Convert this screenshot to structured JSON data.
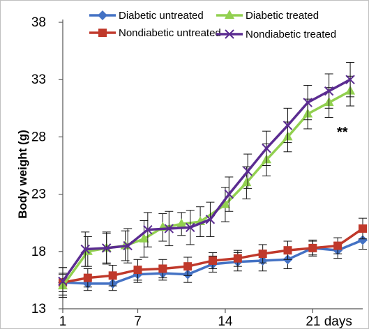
{
  "chart_data": {
    "type": "line",
    "title": "",
    "xlabel": "",
    "ylabel": "Body weight (g)",
    "xlim": [
      1,
      25
    ],
    "ylim": [
      13,
      38
    ],
    "yticks": [
      13,
      18,
      23,
      28,
      33,
      38
    ],
    "xticks": [
      {
        "value": 1,
        "label": "1"
      },
      {
        "value": 7,
        "label": "7"
      },
      {
        "value": 14,
        "label": "14"
      },
      {
        "value": 21,
        "label": "21 days"
      }
    ],
    "x": [
      1,
      3,
      5,
      7,
      9,
      11,
      13,
      15,
      17,
      19,
      21,
      23,
      25
    ],
    "series": [
      {
        "name": "Diabetic untreated",
        "color": "#4472c4",
        "marker": "diamond",
        "values": [
          15.3,
          15.2,
          15.2,
          16.0,
          16.1,
          16.0,
          16.9,
          17.1,
          17.2,
          17.3,
          18.3,
          18.1,
          19.0
        ],
        "errors": [
          0.8,
          0.6,
          0.6,
          0.7,
          0.6,
          0.7,
          0.7,
          0.8,
          0.9,
          0.8,
          0.6,
          0.7,
          0.8
        ]
      },
      {
        "name": "Nondiabetic untreated",
        "color": "#c0392b",
        "marker": "square",
        "values": [
          15.3,
          15.7,
          15.9,
          16.4,
          16.5,
          16.7,
          17.2,
          17.4,
          17.8,
          18.1,
          18.3,
          18.5,
          20.0
        ],
        "errors": [
          1.3,
          0.8,
          0.9,
          0.9,
          0.8,
          0.8,
          0.7,
          0.7,
          0.8,
          0.8,
          0.7,
          0.7,
          0.9
        ]
      },
      {
        "name": "Diabetic treated",
        "color": "#92d050",
        "marker": "triangle",
        "values": [
          15.0,
          18.0,
          18.3,
          18.5,
          19.1,
          20.1,
          20.4,
          20.6,
          22.1,
          24.0,
          26.0,
          28.0,
          30.0,
          31.0,
          32.0
        ],
        "x": [
          1,
          3,
          4.5,
          6,
          7.5,
          9,
          10.5,
          12,
          14,
          15.7,
          17.3,
          19,
          20.6,
          22.3,
          24
        ],
        "errors": [
          1.0,
          1.3,
          1.3,
          1.3,
          1.6,
          1.2,
          1.0,
          1.3,
          1.5,
          1.4,
          1.4,
          1.3,
          1.3,
          1.3,
          1.3
        ]
      },
      {
        "name": "Nondiabetic treated",
        "color": "#5b2c91",
        "marker": "x",
        "values": [
          15.4,
          18.2,
          18.3,
          18.5,
          19.9,
          20.0,
          20.1,
          20.8,
          23.0,
          25.0,
          27.0,
          29.0,
          31.0,
          32.0,
          33.0
        ],
        "x": [
          1,
          2.8,
          4.5,
          6.2,
          7.8,
          9.5,
          11.2,
          12.8,
          14.3,
          15.8,
          17.3,
          19,
          20.6,
          22.3,
          24
        ],
        "errors": [
          1.2,
          1.5,
          1.4,
          1.5,
          1.5,
          1.5,
          1.5,
          1.5,
          1.5,
          1.5,
          1.5,
          1.5,
          1.5,
          1.5,
          1.5
        ]
      }
    ],
    "annotation": "**",
    "legend": "top",
    "grid": false
  }
}
